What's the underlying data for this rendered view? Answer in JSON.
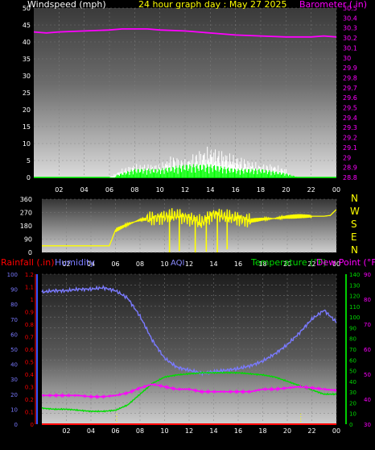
{
  "colors": {
    "background": "#000000",
    "axis_text": "#ffffff",
    "wind_speed": "#ffffff",
    "wind_gust": "#00ff00",
    "barometer": "#ff00ff",
    "wind_direction": "#ffff00",
    "humidity": "#7a7aff",
    "temperature": "#00dd00",
    "dew_point": "#ff00ff",
    "rainfall": "#ff0000",
    "aqi": "#8a8aff",
    "title": "#ffff00",
    "direction_letters": "#ffff00"
  },
  "header": {
    "windspeed_label": "Windspeed (mph)",
    "title": "24 hour graph day : May 27 2025",
    "barometer_label": "Barometer ( in)"
  },
  "labels": {
    "rainfall": "Rainfall (.in)",
    "humidity": "Humidity",
    "aqi": "AQI",
    "temperature": "Temperature (°F)",
    "dew_point": "Dew Point (°F)"
  },
  "direction_letters": [
    "N",
    "W",
    "S",
    "E",
    "N"
  ],
  "chart_data": [
    {
      "type": "line",
      "panel": "wind_barometer",
      "x_ticks": [
        "02",
        "04",
        "06",
        "08",
        "10",
        "12",
        "14",
        "16",
        "18",
        "20",
        "22",
        "00"
      ],
      "y_left": {
        "label": "Windspeed (mph)",
        "ticks": [
          "0",
          "5",
          "10",
          "15",
          "20",
          "25",
          "30",
          "35",
          "40",
          "45",
          "50"
        ],
        "range": [
          0,
          50
        ]
      },
      "y_right": {
        "label": "Barometer ( in)",
        "ticks": [
          "28.8",
          "28.9",
          "29",
          "29.1",
          "29.2",
          "29.3",
          "29.4",
          "29.5",
          "29.6",
          "29.7",
          "29.8",
          "29.9",
          "30",
          "30.1",
          "30.2",
          "30.3",
          "30.4",
          "30.5"
        ],
        "range": [
          28.8,
          30.5
        ]
      },
      "series": [
        {
          "name": "Windspeed (mph)",
          "x": [
            0,
            2,
            4,
            6,
            7,
            8,
            9,
            10,
            11,
            12,
            13,
            14,
            15,
            16,
            17,
            18,
            19,
            20,
            20.5,
            21,
            22,
            24
          ],
          "y": [
            0,
            0,
            0,
            0,
            2,
            3,
            3,
            3,
            5,
            4,
            6,
            7,
            6,
            5,
            4,
            3,
            3,
            2,
            0,
            0,
            0,
            0
          ]
        },
        {
          "name": "Gust",
          "x": [
            0,
            6,
            7,
            8,
            10,
            12,
            14,
            16,
            18,
            20,
            21,
            24
          ],
          "y": [
            0,
            0,
            1,
            2,
            2,
            3,
            3,
            2,
            2,
            1,
            0,
            0
          ]
        },
        {
          "name": "Barometer ( in)",
          "x": [
            0,
            1,
            2,
            4,
            6,
            7,
            8,
            9,
            10,
            12,
            14,
            16,
            18,
            20,
            21,
            22,
            23,
            24
          ],
          "y": [
            30.26,
            30.25,
            30.26,
            30.27,
            30.28,
            30.29,
            30.29,
            30.29,
            30.28,
            30.27,
            30.25,
            30.23,
            30.22,
            30.21,
            30.21,
            30.21,
            30.22,
            30.21
          ]
        }
      ]
    },
    {
      "type": "line",
      "panel": "wind_direction",
      "x_ticks": [
        "02",
        "04",
        "06",
        "08",
        "10",
        "12",
        "14",
        "16",
        "18",
        "20",
        "22",
        "00"
      ],
      "y_left": {
        "ticks": [
          "0",
          "90",
          "180",
          "270",
          "360"
        ],
        "range": [
          0,
          360
        ]
      },
      "series": [
        {
          "name": "Wind Direction",
          "x": [
            0,
            1,
            2,
            3,
            4,
            5,
            5.5,
            6,
            7,
            8,
            9,
            10,
            11,
            12,
            13,
            14,
            15,
            16,
            17,
            18,
            19,
            20,
            21,
            22,
            23,
            23.5,
            24
          ],
          "y": [
            45,
            45,
            45,
            45,
            45,
            45,
            45,
            150,
            190,
            220,
            230,
            240,
            250,
            230,
            200,
            260,
            240,
            230,
            215,
            225,
            230,
            240,
            245,
            245,
            245,
            250,
            290
          ]
        }
      ]
    },
    {
      "type": "line",
      "panel": "humidity_temperature",
      "x_ticks": [
        "02",
        "04",
        "06",
        "08",
        "10",
        "12",
        "14",
        "16",
        "18",
        "20",
        "22",
        "00"
      ],
      "y_rain": {
        "label": "Rainfall (.in)",
        "ticks": [
          "0",
          "0.1",
          "0.2",
          "0.3",
          "0.4",
          "0.5",
          "0.6",
          "0.7",
          "0.8",
          "0.9",
          "1",
          "1.1",
          "1.2"
        ],
        "range": [
          0,
          1.2
        ]
      },
      "y_humidity": {
        "label": "Humidity",
        "ticks": [
          "0",
          "10",
          "20",
          "30",
          "40",
          "50",
          "60",
          "70",
          "80",
          "90",
          "100"
        ],
        "range": [
          0,
          100
        ]
      },
      "y_temperature": {
        "label": "Temperature (°F)",
        "ticks": [
          "0",
          "10",
          "20",
          "30",
          "40",
          "50",
          "60",
          "70",
          "80",
          "90",
          "100",
          "110",
          "120",
          "130",
          "140"
        ],
        "range": [
          0,
          140
        ]
      },
      "y_dewpoint": {
        "label": "Dew Point (°F)",
        "ticks": [
          "30",
          "40",
          "50",
          "60",
          "70",
          "80",
          "90"
        ],
        "range": [
          30,
          90
        ]
      },
      "series": [
        {
          "name": "Humidity",
          "x": [
            0,
            1,
            2,
            3,
            4,
            5,
            6,
            7,
            8,
            9,
            10,
            11,
            12,
            13,
            14,
            15,
            16,
            17,
            18,
            19,
            20,
            21,
            22,
            23,
            23.5,
            24
          ],
          "y": [
            88,
            89,
            89,
            90,
            90,
            91,
            89,
            84,
            72,
            56,
            44,
            38,
            36,
            34,
            35,
            36,
            37,
            39,
            42,
            47,
            53,
            61,
            70,
            76,
            72,
            68
          ]
        },
        {
          "name": "Temperature (°F)",
          "x": [
            0,
            1,
            2,
            3,
            4,
            5,
            6,
            7,
            8,
            9,
            10,
            11,
            12,
            13,
            14,
            15,
            16,
            17,
            18,
            19,
            20,
            21,
            22,
            23,
            24
          ],
          "y": [
            15,
            14,
            14,
            13,
            12,
            12,
            13,
            18,
            28,
            38,
            44,
            46,
            47,
            48,
            48,
            48,
            48,
            47,
            46,
            44,
            40,
            36,
            32,
            28,
            28
          ]
        },
        {
          "name": "Dew Point (°F)",
          "x": [
            0,
            1,
            2,
            3,
            4,
            5,
            6,
            7,
            8,
            9,
            10,
            11,
            12,
            13,
            14,
            15,
            16,
            17,
            18,
            19,
            20,
            21,
            22,
            23,
            24
          ],
          "y": [
            41.5,
            41.5,
            41.5,
            41.5,
            41,
            41,
            41.5,
            42.5,
            44.5,
            46,
            45,
            44,
            44,
            43,
            43,
            43,
            43,
            43,
            44,
            44,
            44.5,
            45,
            44.5,
            44,
            43.5
          ]
        },
        {
          "name": "Rainfall (.in)",
          "x": [
            0,
            24
          ],
          "y": [
            0,
            0
          ]
        }
      ]
    }
  ]
}
